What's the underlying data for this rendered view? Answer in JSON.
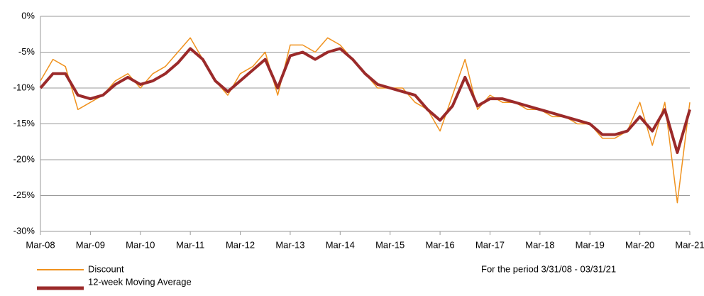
{
  "chart_data": {
    "type": "line",
    "annotation": "For the period 3/31/08 - 03/31/21",
    "x": [
      "Mar-08",
      "Jun-08",
      "Sep-08",
      "Dec-08",
      "Mar-09",
      "Jun-09",
      "Sep-09",
      "Dec-09",
      "Mar-10",
      "Jun-10",
      "Sep-10",
      "Dec-10",
      "Mar-11",
      "Jun-11",
      "Sep-11",
      "Dec-11",
      "Mar-12",
      "Jun-12",
      "Sep-12",
      "Dec-12",
      "Mar-13",
      "Jun-13",
      "Sep-13",
      "Dec-13",
      "Mar-14",
      "Jun-14",
      "Sep-14",
      "Dec-14",
      "Mar-15",
      "Jun-15",
      "Sep-15",
      "Dec-15",
      "Mar-16",
      "Jun-16",
      "Sep-16",
      "Dec-16",
      "Mar-17",
      "Jun-17",
      "Sep-17",
      "Dec-17",
      "Mar-18",
      "Jun-18",
      "Sep-18",
      "Dec-18",
      "Mar-19",
      "Jun-19",
      "Sep-19",
      "Dec-19",
      "Mar-20",
      "Jun-20",
      "Sep-20",
      "Dec-20",
      "Mar-21"
    ],
    "xticks": [
      "Mar-08",
      "Mar-09",
      "Mar-10",
      "Mar-11",
      "Mar-12",
      "Mar-13",
      "Mar-14",
      "Mar-15",
      "Mar-16",
      "Mar-17",
      "Mar-18",
      "Mar-19",
      "Mar-20",
      "Mar-21"
    ],
    "series": [
      {
        "name": "Discount",
        "color": "#f0921e",
        "values": [
          -9,
          -6,
          -7,
          -13,
          -12,
          -11,
          -9,
          -8,
          -10,
          -8,
          -7,
          -5,
          -3,
          -6,
          -9,
          -11,
          -8,
          -7,
          -5,
          -11,
          -4,
          -4,
          -5,
          -3,
          -4,
          -6,
          -8,
          -10,
          -10,
          -10,
          -12,
          -13,
          -16,
          -11,
          -6,
          -13,
          -11,
          -12,
          -12,
          -13,
          -13,
          -14,
          -14,
          -15,
          -15,
          -17,
          -17,
          -16,
          -12,
          -18,
          -12,
          -26,
          -12
        ]
      },
      {
        "name": "12-week Moving Average",
        "color": "#9b2a2a",
        "values": [
          -10,
          -8,
          -8,
          -11,
          -11.5,
          -11,
          -9.5,
          -8.5,
          -9.5,
          -9,
          -8,
          -6.5,
          -4.5,
          -6,
          -9,
          -10.5,
          -9,
          -7.5,
          -6,
          -10,
          -5.5,
          -5,
          -6,
          -5,
          -4.5,
          -6,
          -8,
          -9.5,
          -10,
          -10.5,
          -11,
          -13,
          -14.5,
          -12.5,
          -8.5,
          -12.5,
          -11.5,
          -11.5,
          -12,
          -12.5,
          -13,
          -13.5,
          -14,
          -14.5,
          -15,
          -16.5,
          -16.5,
          -16,
          -14,
          -16,
          -13,
          -19,
          -13
        ]
      }
    ],
    "ylim": [
      -30,
      0
    ],
    "yticks": [
      {
        "value": 0,
        "label": "0%"
      },
      {
        "value": -5,
        "label": "-5%"
      },
      {
        "value": -10,
        "label": "-10%"
      },
      {
        "value": -15,
        "label": "-15%"
      },
      {
        "value": -20,
        "label": "-20%"
      },
      {
        "value": -25,
        "label": "-25%"
      },
      {
        "value": -30,
        "label": "-30%"
      }
    ],
    "grid": true,
    "legend": "bottom-left"
  }
}
